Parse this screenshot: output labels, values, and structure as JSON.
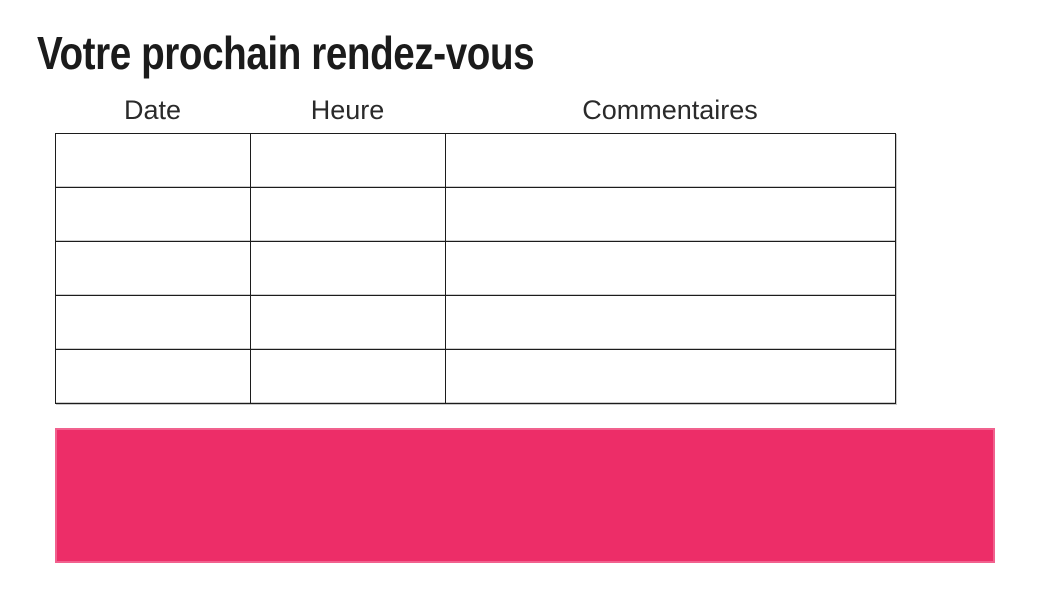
{
  "page": {
    "title": "Votre prochain rendez-vous"
  },
  "appointments_table": {
    "columns": [
      {
        "label": "Date"
      },
      {
        "label": "Heure"
      },
      {
        "label": "Commentaires"
      }
    ],
    "rows": [
      [
        "",
        "",
        ""
      ],
      [
        "",
        "",
        ""
      ],
      [
        "",
        "",
        ""
      ],
      [
        "",
        "",
        ""
      ],
      [
        "",
        "",
        ""
      ]
    ]
  },
  "banner": {
    "text": ""
  },
  "colors": {
    "accent_pink": "#ED2D68",
    "table_border": "#1C1C1C",
    "text": "#1B1B1B"
  }
}
